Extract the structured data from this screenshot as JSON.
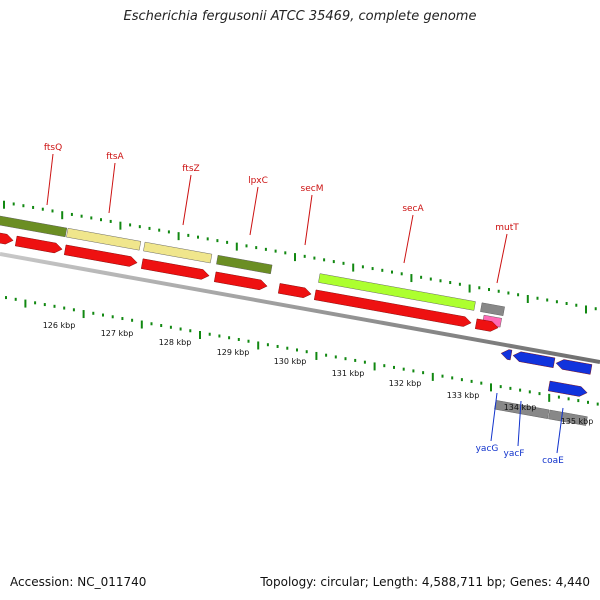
{
  "title": "Escherichia fergusonii ATCC 35469, complete genome",
  "accession_text": "Accession: NC_011740",
  "summary_text": "Topology: circular; Length: 4,588,711 bp; Genes: 4,440",
  "scale_labels": [
    "126 kbp",
    "127 kbp",
    "128 kbp",
    "129 kbp",
    "130 kbp",
    "131 kbp",
    "132 kbp",
    "133 kbp",
    "134 kbp",
    "135 kbp"
  ],
  "gene_labels_top": [
    "ftsQ",
    "ftsA",
    "ftsZ",
    "lpxC",
    "secM",
    "secA",
    "mutT"
  ],
  "gene_labels_bottom": [
    "yacG",
    "yacF",
    "coaE"
  ],
  "colors": {
    "forward_cds": "#ee1111",
    "reverse_cds": "#1133dd",
    "ticks": "#118811",
    "backbone": "#8a8a8a",
    "label_top": "#cc1111",
    "label_bottom": "#1133cc",
    "cog_olive": "#6b8e23",
    "cog_khaki": "#f0e68c",
    "cog_lime": "#adff2f",
    "cog_gray": "#888888",
    "cog_pink": "#ff69b4"
  }
}
